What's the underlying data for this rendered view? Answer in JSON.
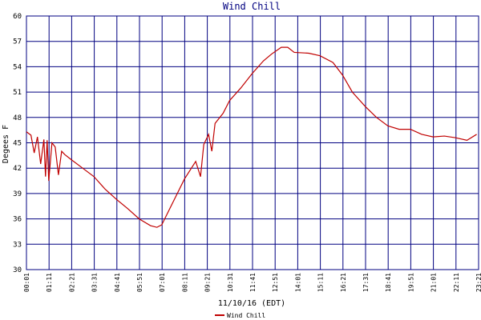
{
  "chart_data": {
    "type": "line",
    "title": "Wind Chill",
    "x_label": "11/10/16 (EDT)",
    "y_label": "Degees F",
    "x": [
      1,
      15,
      25,
      35,
      45,
      55,
      60,
      65,
      70,
      80,
      90,
      100,
      110,
      120,
      140,
      175,
      210,
      245,
      280,
      315,
      350,
      385,
      405,
      420,
      455,
      490,
      525,
      540,
      550,
      565,
      575,
      585,
      610,
      630,
      665,
      700,
      735,
      760,
      790,
      810,
      830,
      875,
      910,
      950,
      980,
      1010,
      1050,
      1085,
      1120,
      1155,
      1190,
      1225,
      1260,
      1295,
      1330,
      1365,
      1395
    ],
    "series": [
      {
        "name": "Wind Chill",
        "color": "#c00000",
        "values": [
          46.3,
          45.9,
          43.8,
          45.7,
          42.5,
          45.4,
          41.0,
          45.3,
          40.5,
          45.0,
          44.5,
          41.2,
          44.0,
          43.6,
          43.0,
          42.0,
          41.0,
          39.5,
          38.3,
          37.2,
          36.0,
          35.2,
          35.0,
          35.3,
          38.0,
          40.7,
          42.8,
          41.0,
          44.8,
          46.0,
          44.0,
          47.3,
          48.5,
          50.0,
          51.5,
          53.2,
          54.7,
          55.5,
          56.3,
          56.3,
          55.7,
          55.6,
          55.3,
          54.5,
          53.0,
          51.0,
          49.3,
          48.0,
          47.0,
          46.6,
          46.6,
          46.0,
          45.7,
          45.8,
          45.6,
          45.3,
          46.0
        ]
      }
    ],
    "xlim": [
      1,
      1401
    ],
    "xticks": [
      {
        "value": 1,
        "label": "00:01"
      },
      {
        "value": 71,
        "label": "01:11"
      },
      {
        "value": 141,
        "label": "02:21"
      },
      {
        "value": 211,
        "label": "03:31"
      },
      {
        "value": 281,
        "label": "04:41"
      },
      {
        "value": 351,
        "label": "05:51"
      },
      {
        "value": 421,
        "label": "07:01"
      },
      {
        "value": 491,
        "label": "08:11"
      },
      {
        "value": 561,
        "label": "09:21"
      },
      {
        "value": 631,
        "label": "10:31"
      },
      {
        "value": 701,
        "label": "11:41"
      },
      {
        "value": 771,
        "label": "12:51"
      },
      {
        "value": 841,
        "label": "14:01"
      },
      {
        "value": 911,
        "label": "15:11"
      },
      {
        "value": 981,
        "label": "16:21"
      },
      {
        "value": 1051,
        "label": "17:31"
      },
      {
        "value": 1121,
        "label": "18:41"
      },
      {
        "value": 1191,
        "label": "19:51"
      },
      {
        "value": 1261,
        "label": "21:01"
      },
      {
        "value": 1331,
        "label": "22:11"
      },
      {
        "value": 1401,
        "label": "23:21"
      }
    ],
    "ylim": [
      30,
      60
    ],
    "yticks": [
      30,
      33,
      36,
      39,
      42,
      45,
      48,
      51,
      54,
      57,
      60
    ],
    "grid": true,
    "legend": "bottom"
  }
}
